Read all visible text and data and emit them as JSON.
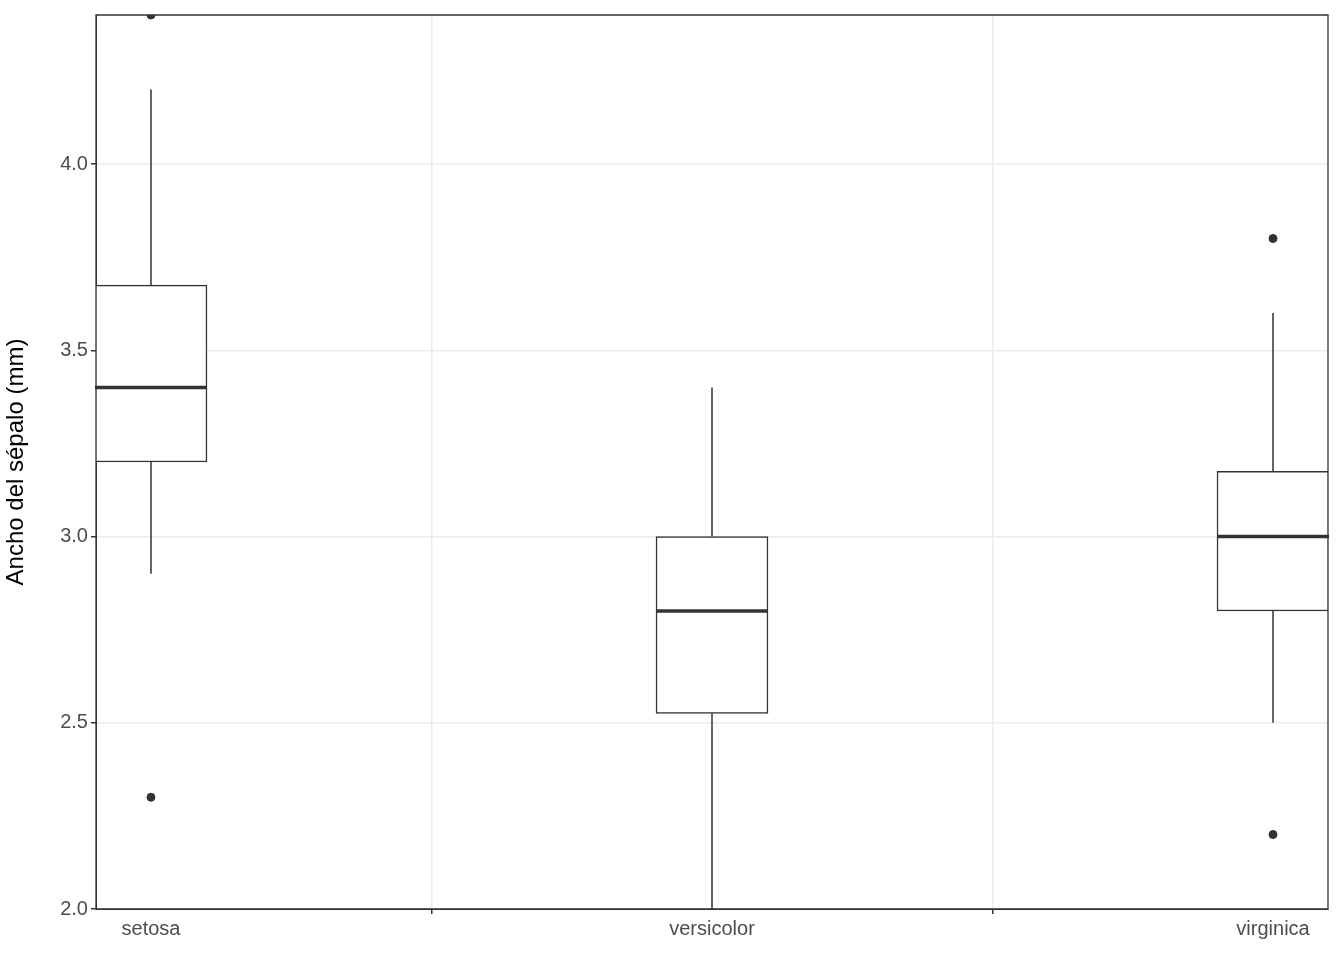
{
  "chart_data": {
    "type": "box",
    "ylabel": "Ancho del sépalo (mm)",
    "categories": [
      "setosa",
      "versicolor",
      "virginica"
    ],
    "series": [
      {
        "color": "#333333",
        "boxes": [
          {
            "low": 2.9,
            "q1": 3.2,
            "median": 3.4,
            "q3": 3.675,
            "high": 4.2,
            "outliers": [
              2.3,
              4.4
            ]
          },
          {
            "low": 2.0,
            "q1": 2.525,
            "median": 2.8,
            "q3": 3.0,
            "high": 3.4
          },
          {
            "low": 2.5,
            "q1": 2.8,
            "median": 3.0,
            "q3": 3.175,
            "high": 3.6,
            "outliers": [
              2.2,
              3.8
            ]
          }
        ]
      }
    ],
    "ylim": [
      2.0,
      4.4
    ],
    "yticks": [
      {
        "value": 2.0,
        "label": "2.0"
      },
      {
        "value": 2.5,
        "label": "2.5"
      },
      {
        "value": 3.0,
        "label": "3.0"
      },
      {
        "value": 3.5,
        "label": "3.5"
      },
      {
        "value": 4.0,
        "label": "4.0"
      }
    ],
    "grid": true
  }
}
